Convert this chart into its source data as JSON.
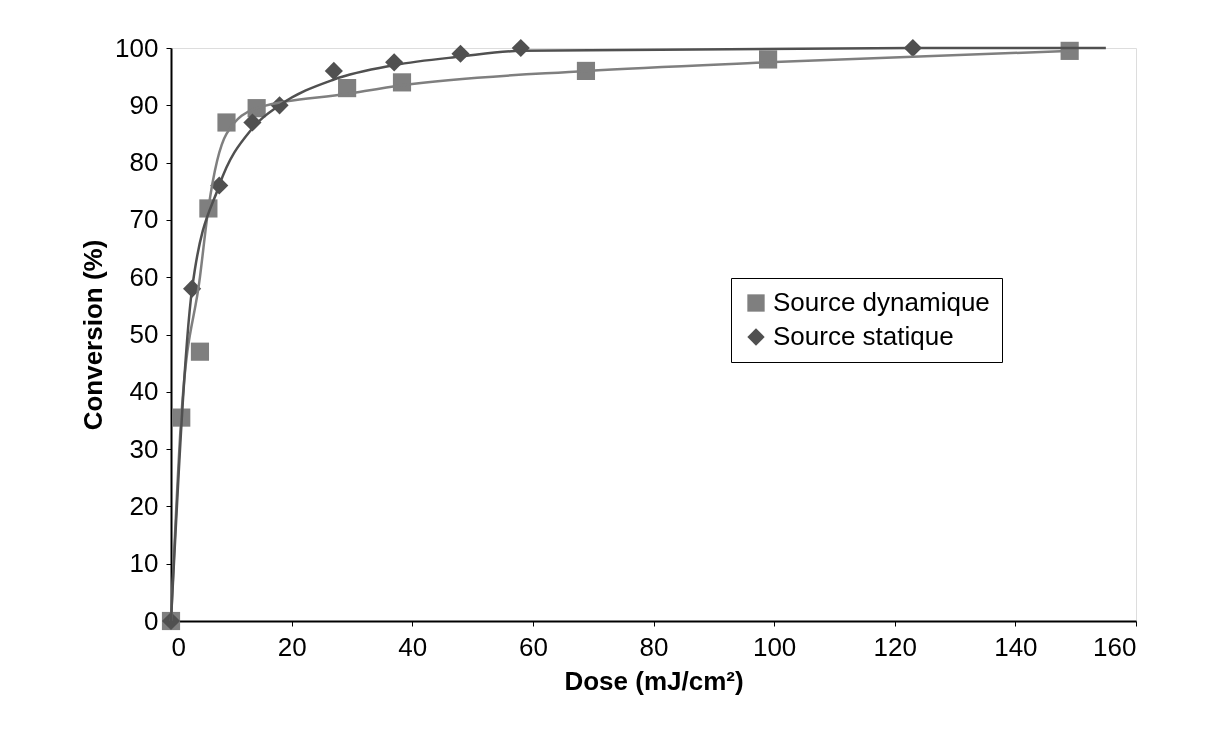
{
  "chart_data": {
    "type": "scatter",
    "xlabel": "Dose (mJ/cm²)",
    "ylabel": "Conversion (%)",
    "xlim": [
      0,
      160
    ],
    "xticks": [
      0,
      20,
      40,
      60,
      80,
      100,
      120,
      140,
      160
    ],
    "ylim": [
      0,
      100
    ],
    "yticks": [
      0,
      10,
      20,
      30,
      40,
      50,
      60,
      70,
      80,
      90,
      100
    ],
    "grid": false,
    "legend": "right",
    "line_style": "solid",
    "series": [
      {
        "name": "Source dynamique",
        "color": "#7f7f7f",
        "marker": "square",
        "x": [
          0,
          1.7,
          4.8,
          6.2,
          9.2,
          14.2,
          29.2,
          38.3,
          68.8,
          99,
          149
        ],
        "values": [
          0,
          35.5,
          47,
          72,
          87,
          89.5,
          93,
          94,
          96,
          98,
          99.5
        ]
      },
      {
        "name": "Source statique",
        "color": "#505050",
        "marker": "diamond",
        "x": [
          0,
          3.5,
          8,
          13.5,
          18,
          27,
          37,
          48,
          58,
          123
        ],
        "values": [
          0,
          58,
          76,
          87,
          90,
          96,
          97.5,
          99,
          100,
          100
        ]
      },
      {
        "type": "line",
        "color": "#7f7f7f",
        "x": [
          0,
          1.7,
          4.8,
          6.2,
          9.2,
          14.2,
          29.2,
          38.3,
          68.8,
          99,
          149
        ],
        "values": [
          0,
          35.5,
          60,
          72,
          85,
          89.5,
          92,
          93.5,
          96,
          97.5,
          99.5
        ]
      },
      {
        "type": "line",
        "color": "#505050",
        "x": [
          0,
          3.5,
          8,
          13.5,
          18,
          27,
          37,
          48,
          58,
          123,
          155
        ],
        "values": [
          0,
          58,
          76,
          86,
          90,
          94.5,
          97,
          98.5,
          99.5,
          100,
          100
        ]
      }
    ]
  }
}
